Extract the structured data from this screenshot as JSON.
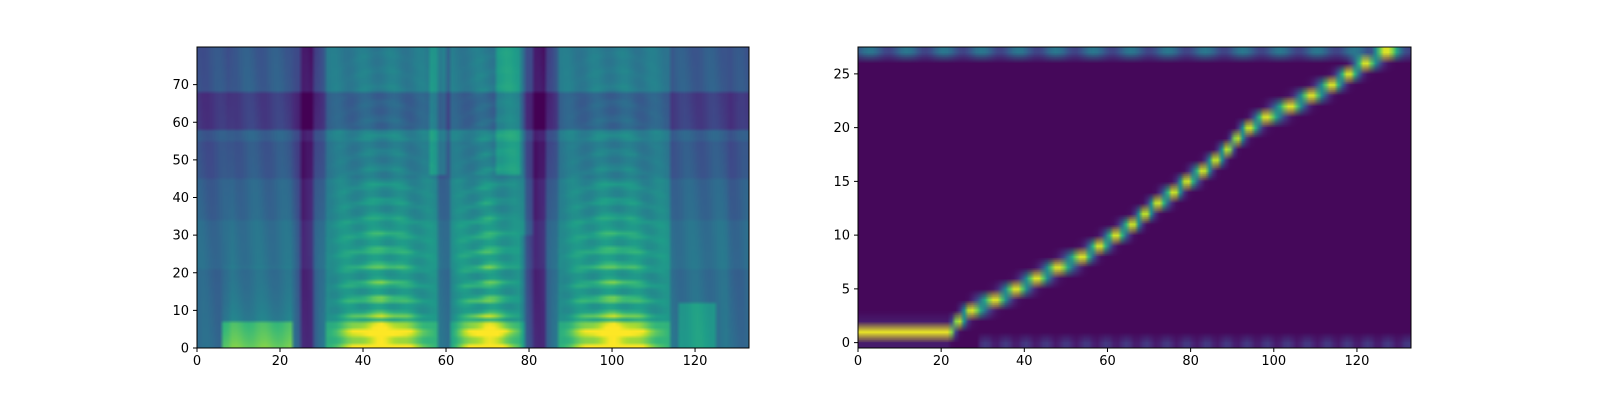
{
  "chart_data": [
    {
      "type": "heatmap",
      "subtype": "mel-spectrogram",
      "colormap": "viridis",
      "title": "",
      "xlabel": "",
      "ylabel": "",
      "xlim": [
        0,
        133
      ],
      "ylim": [
        0,
        80
      ],
      "xticks": [
        0,
        20,
        40,
        60,
        80,
        100,
        120
      ],
      "yticks": [
        0,
        10,
        20,
        30,
        40,
        50,
        60,
        70
      ],
      "grid": false,
      "silence_columns": [
        26,
        82
      ],
      "speech_segments": [
        [
          31,
          57
        ],
        [
          61,
          78
        ],
        [
          87,
          113
        ]
      ],
      "pitch_f0_bins": [
        5,
        4.5,
        4.2,
        4.5,
        5
      ],
      "harmonic_count": 9
    },
    {
      "type": "heatmap",
      "subtype": "attention-alignment",
      "colormap": "viridis",
      "title": "",
      "xlabel": "",
      "ylabel": "",
      "xlim": [
        0,
        133
      ],
      "ylim": [
        0,
        28
      ],
      "xticks": [
        0,
        20,
        40,
        60,
        80,
        100,
        120
      ],
      "yticks": [
        0,
        5,
        10,
        15,
        20,
        25
      ],
      "grid": false,
      "alignment_path": [
        {
          "x": 0,
          "y": 1
        },
        {
          "x": 22,
          "y": 1
        },
        {
          "x": 24,
          "y": 2
        },
        {
          "x": 27,
          "y": 3
        },
        {
          "x": 33,
          "y": 4
        },
        {
          "x": 38,
          "y": 5
        },
        {
          "x": 43,
          "y": 6
        },
        {
          "x": 48,
          "y": 7
        },
        {
          "x": 54,
          "y": 8
        },
        {
          "x": 58,
          "y": 9
        },
        {
          "x": 62,
          "y": 10
        },
        {
          "x": 66,
          "y": 11
        },
        {
          "x": 69,
          "y": 12
        },
        {
          "x": 72,
          "y": 13
        },
        {
          "x": 76,
          "y": 14
        },
        {
          "x": 79,
          "y": 15
        },
        {
          "x": 83,
          "y": 16
        },
        {
          "x": 86,
          "y": 17
        },
        {
          "x": 89,
          "y": 18
        },
        {
          "x": 91,
          "y": 19
        },
        {
          "x": 94,
          "y": 20
        },
        {
          "x": 98,
          "y": 21
        },
        {
          "x": 104,
          "y": 22
        },
        {
          "x": 109,
          "y": 23
        },
        {
          "x": 114,
          "y": 24
        },
        {
          "x": 118,
          "y": 25
        },
        {
          "x": 122,
          "y": 26
        },
        {
          "x": 127,
          "y": 27
        },
        {
          "x": 133,
          "y": 28
        }
      ]
    }
  ]
}
